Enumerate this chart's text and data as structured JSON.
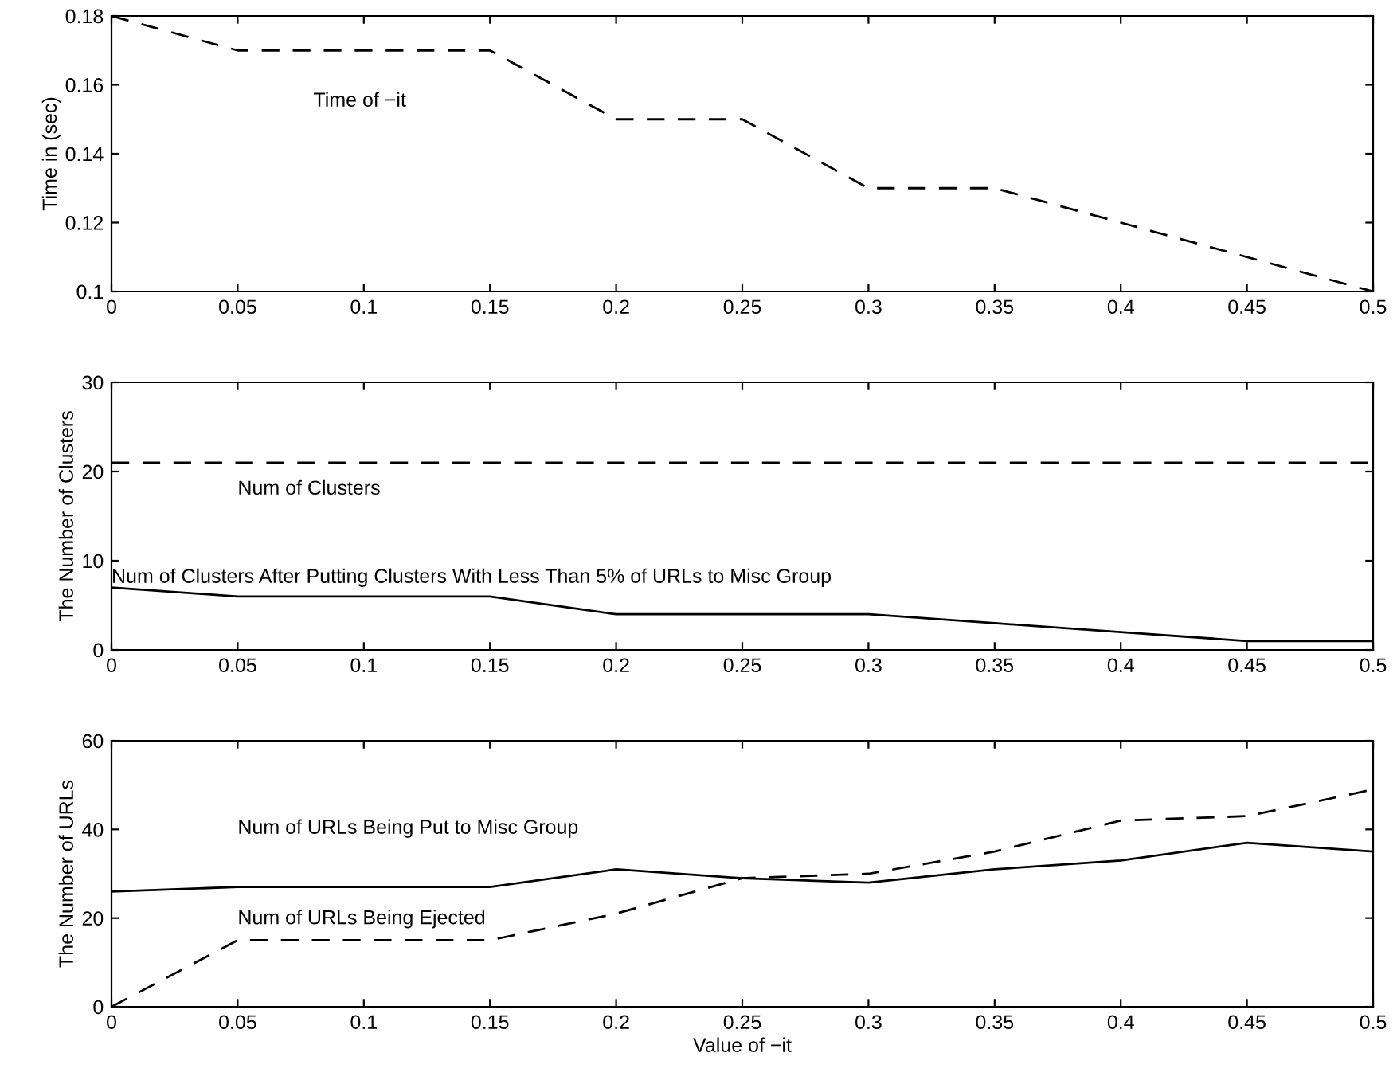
{
  "chart_data": [
    {
      "type": "line",
      "ylabel": "Time in (sec)",
      "x": [
        0,
        0.05,
        0.1,
        0.15,
        0.2,
        0.25,
        0.3,
        0.35,
        0.4,
        0.45,
        0.5
      ],
      "series": [
        {
          "name": "Time of −it",
          "color": "#000000",
          "line_style": "dashed",
          "values": [
            0.18,
            0.17,
            0.17,
            0.17,
            0.15,
            0.15,
            0.13,
            0.13,
            0.12,
            0.11,
            0.1
          ]
        }
      ],
      "xlim": [
        0,
        0.5
      ],
      "xticks": [
        0,
        0.05,
        0.1,
        0.15,
        0.2,
        0.25,
        0.3,
        0.35,
        0.4,
        0.45,
        0.5
      ],
      "ylim": [
        0.1,
        0.18
      ],
      "yticks": [
        0.1,
        0.12,
        0.14,
        0.16,
        0.18
      ],
      "grid": false
    },
    {
      "type": "line",
      "ylabel": "The Number of Clusters",
      "x": [
        0,
        0.05,
        0.1,
        0.15,
        0.2,
        0.25,
        0.3,
        0.35,
        0.4,
        0.45,
        0.5
      ],
      "series": [
        {
          "name": "Num of Clusters",
          "color": "#000000",
          "line_style": "dashed",
          "values": [
            21,
            21,
            21,
            21,
            21,
            21,
            21,
            21,
            21,
            21,
            21
          ]
        },
        {
          "name": "Num of Clusters After Putting Clusters With Less Than 5% of URLs to Misc Group",
          "color": "#000000",
          "line_style": "solid",
          "values": [
            7,
            6,
            6,
            6,
            4,
            4,
            4,
            3,
            2,
            1,
            1
          ]
        }
      ],
      "xlim": [
        0,
        0.5
      ],
      "xticks": [
        0,
        0.05,
        0.1,
        0.15,
        0.2,
        0.25,
        0.3,
        0.35,
        0.4,
        0.45,
        0.5
      ],
      "ylim": [
        0,
        30
      ],
      "yticks": [
        0,
        10,
        20,
        30
      ],
      "grid": false
    },
    {
      "type": "line",
      "xlabel": "Value of −it",
      "ylabel": "The Number of URLs",
      "x": [
        0,
        0.05,
        0.1,
        0.15,
        0.2,
        0.25,
        0.3,
        0.35,
        0.4,
        0.45,
        0.5
      ],
      "series": [
        {
          "name": "Num of URLs Being Put to Misc Group",
          "color": "#000000",
          "line_style": "solid",
          "values": [
            26,
            27,
            27,
            27,
            31,
            29,
            28,
            31,
            33,
            37,
            35
          ]
        },
        {
          "name": "Num of URLs Being Ejected",
          "color": "#000000",
          "line_style": "dashed",
          "values": [
            0,
            15,
            15,
            15,
            21,
            29,
            30,
            35,
            42,
            43,
            49
          ]
        }
      ],
      "xlim": [
        0,
        0.5
      ],
      "xticks": [
        0,
        0.05,
        0.1,
        0.15,
        0.2,
        0.25,
        0.3,
        0.35,
        0.4,
        0.45,
        0.5
      ],
      "ylim": [
        0,
        60
      ],
      "yticks": [
        0,
        20,
        40,
        60
      ],
      "grid": false
    }
  ]
}
